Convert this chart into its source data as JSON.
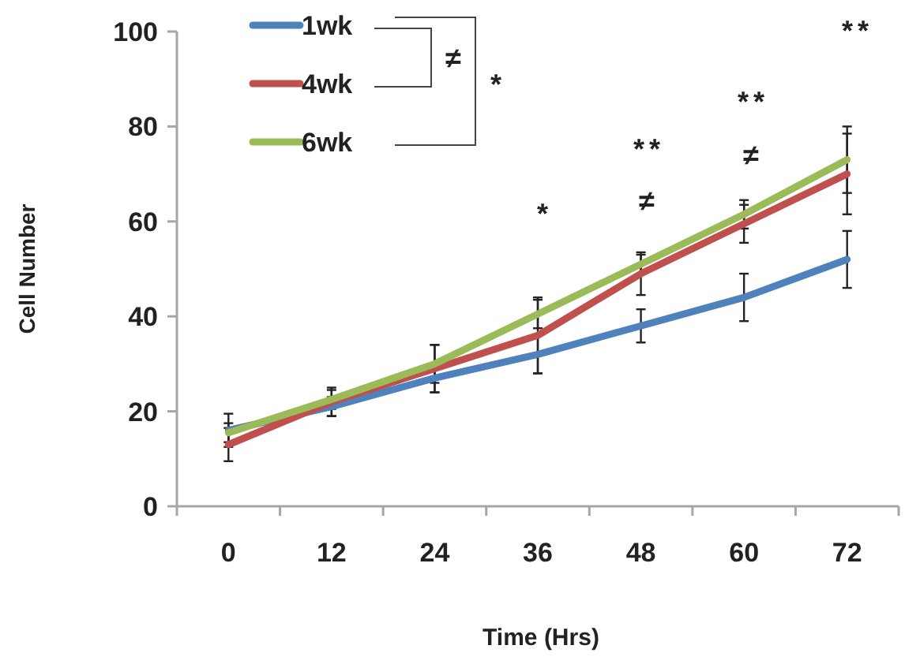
{
  "chart_data": {
    "type": "line",
    "xlabel": "Time (Hrs)",
    "ylabel": "Cell Number",
    "categories": [
      "0",
      "12",
      "24",
      "36",
      "48",
      "60",
      "72"
    ],
    "series": [
      {
        "name": "1wk",
        "color": "#4f81bd",
        "values": [
          16,
          21,
          27,
          32,
          38,
          44,
          52
        ],
        "errors": [
          3.5,
          2,
          3,
          4,
          3.5,
          5,
          6
        ]
      },
      {
        "name": "4wk",
        "color": "#c0504d",
        "values": [
          13,
          22,
          29,
          36,
          49,
          59.5,
          70
        ],
        "errors": [
          3.5,
          3,
          5,
          8,
          4.5,
          4,
          8.5
        ]
      },
      {
        "name": "6wk",
        "color": "#9bbb59",
        "values": [
          15.5,
          22.5,
          30,
          40.5,
          51,
          61.5,
          73
        ],
        "errors": [
          2,
          2,
          4,
          3,
          2,
          3,
          7
        ]
      }
    ],
    "ylim": [
      0,
      100
    ],
    "yticks": [
      0,
      20,
      40,
      60,
      80,
      100
    ],
    "legend": "top left",
    "grid": false,
    "marker": "none",
    "line_style": "solid",
    "annotations": [
      "≠",
      "*",
      "*",
      "**",
      "≠",
      "**",
      "≠",
      "**"
    ]
  }
}
